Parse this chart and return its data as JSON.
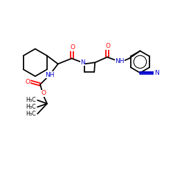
{
  "bg": "#ffffff",
  "bond_color": "#000000",
  "O_color": "#ff0000",
  "N_color": "#0000cc",
  "lw": 1.3,
  "fs": 6.5,
  "sfs": 5.8,
  "dpi": 100,
  "xlim": [
    0,
    250
  ],
  "ylim": [
    0,
    250
  ],
  "figsize": [
    2.5,
    2.5
  ]
}
